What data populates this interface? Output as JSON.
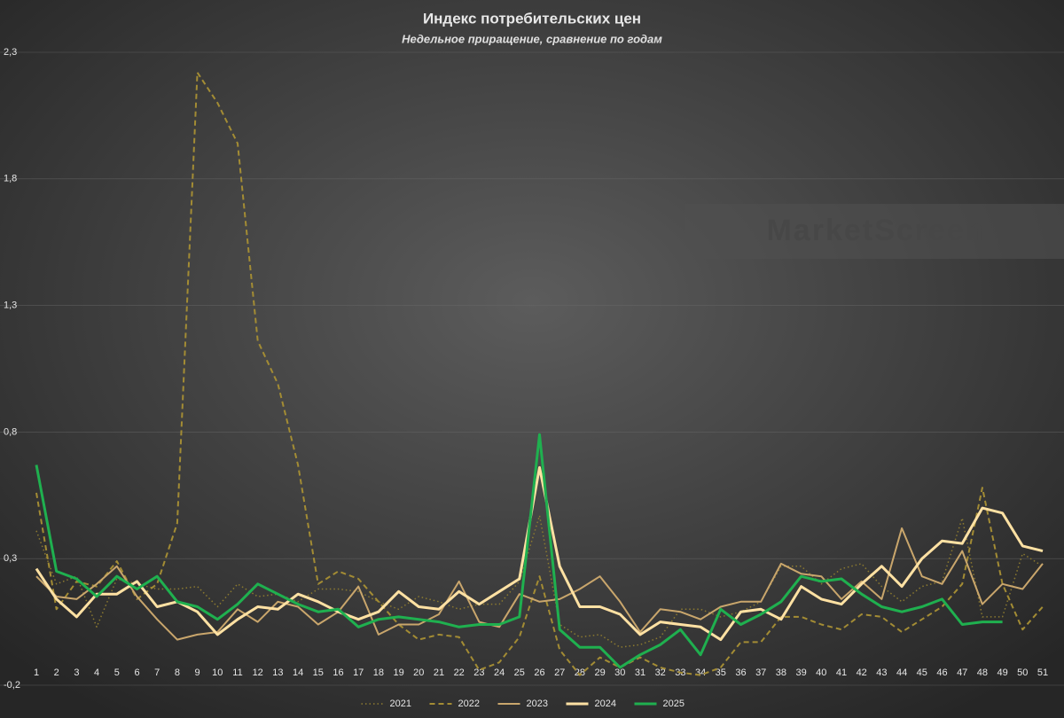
{
  "chart_data": {
    "type": "line",
    "title": "Индекс потребительских цен",
    "subtitle": "Недельное приращение, сравнение по годам",
    "watermark": "MarketScreen",
    "categories": [
      "1",
      "2",
      "3",
      "4",
      "5",
      "6",
      "7",
      "8",
      "9",
      "10",
      "11",
      "12",
      "13",
      "14",
      "15",
      "16",
      "17",
      "18",
      "19",
      "20",
      "21",
      "22",
      "23",
      "24",
      "25",
      "26",
      "27",
      "28",
      "29",
      "30",
      "31",
      "32",
      "33",
      "34",
      "35",
      "36",
      "37",
      "38",
      "39",
      "40",
      "41",
      "42",
      "43",
      "44",
      "45",
      "46",
      "47",
      "48",
      "49",
      "50",
      "51"
    ],
    "ylim": [
      -0.2,
      2.3
    ],
    "yticks": [
      {
        "value": -0.2,
        "label": "-0,2"
      },
      {
        "value": 0.3,
        "label": "0,3"
      },
      {
        "value": 0.8,
        "label": "0,8"
      },
      {
        "value": 1.3,
        "label": "1,3"
      },
      {
        "value": 1.8,
        "label": "1,8"
      },
      {
        "value": 2.3,
        "label": "2,3"
      }
    ],
    "grid": true,
    "legend": "bottom",
    "series": [
      {
        "name": "2021",
        "color": "#8c7a30",
        "style": "dotted",
        "width": 1.5,
        "values": [
          0.41,
          0.2,
          0.23,
          0.03,
          0.22,
          0.2,
          0.18,
          0.18,
          0.19,
          0.11,
          0.2,
          0.15,
          0.16,
          0.13,
          0.18,
          0.18,
          0.17,
          0.13,
          0.1,
          0.15,
          0.13,
          0.1,
          0.12,
          0.12,
          0.21,
          0.47,
          0.04,
          -0.01,
          0,
          -0.05,
          -0.04,
          -0.01,
          0.1,
          0.1,
          0.07,
          0.09,
          0.13,
          0.27,
          0.27,
          0.2,
          0.26,
          0.28,
          0.19,
          0.13,
          0.19,
          0.21,
          0.46,
          0.07,
          0.07,
          0.32,
          0.27
        ]
      },
      {
        "name": "2022",
        "color": "#a38c34",
        "style": "dashed",
        "width": 2,
        "values": [
          0.56,
          0.1,
          0.21,
          0.19,
          0.29,
          0.14,
          0.2,
          0.44,
          2.22,
          2.1,
          1.94,
          1.16,
          0.99,
          0.67,
          0.2,
          0.25,
          0.22,
          0.13,
          0.04,
          -0.02,
          0,
          -0.01,
          -0.14,
          -0.11,
          -0.01,
          0.23,
          -0.06,
          -0.16,
          -0.09,
          -0.13,
          -0.09,
          -0.13,
          -0.15,
          -0.16,
          -0.13,
          -0.03,
          -0.03,
          0.07,
          0.07,
          0.04,
          0.02,
          0.08,
          0.07,
          0.01,
          0.06,
          0.11,
          0.2,
          0.58,
          0.2,
          0.02,
          0.11
        ]
      },
      {
        "name": "2023",
        "color": "#c9a66c",
        "style": "solid",
        "width": 2,
        "values": [
          0.23,
          0.15,
          0.14,
          0.2,
          0.27,
          0.15,
          0.06,
          -0.02,
          0,
          0.01,
          0.1,
          0.05,
          0.13,
          0.11,
          0.04,
          0.09,
          0.19,
          0,
          0.04,
          0.04,
          0.08,
          0.21,
          0.05,
          0.03,
          0.16,
          0.13,
          0.14,
          0.18,
          0.23,
          0.13,
          0.01,
          0.1,
          0.09,
          0.06,
          0.11,
          0.13,
          0.13,
          0.28,
          0.24,
          0.23,
          0.14,
          0.21,
          0.14,
          0.42,
          0.23,
          0.2,
          0.33,
          0.12,
          0.2,
          0.18,
          0.28
        ]
      },
      {
        "name": "2024",
        "color": "#ffe1a3",
        "style": "solid",
        "width": 3,
        "values": [
          0.26,
          0.14,
          0.07,
          0.16,
          0.16,
          0.21,
          0.11,
          0.13,
          0.09,
          0,
          0.06,
          0.11,
          0.1,
          0.16,
          0.13,
          0.09,
          0.06,
          0.09,
          0.17,
          0.11,
          0.1,
          0.17,
          0.12,
          0.17,
          0.22,
          0.66,
          0.27,
          0.11,
          0.11,
          0.08,
          0,
          0.05,
          0.04,
          0.03,
          -0.02,
          0.09,
          0.1,
          0.06,
          0.19,
          0.14,
          0.12,
          0.2,
          0.27,
          0.19,
          0.3,
          0.37,
          0.36,
          0.5,
          0.48,
          0.35,
          0.33
        ]
      },
      {
        "name": "2025",
        "color": "#1fb04f",
        "style": "solid",
        "width": 3,
        "values": [
          0.67,
          0.25,
          0.22,
          0.15,
          0.23,
          0.18,
          0.23,
          0.13,
          0.11,
          0.06,
          0.12,
          0.2,
          0.16,
          0.12,
          0.09,
          0.1,
          0.03,
          0.06,
          0.07,
          0.06,
          0.05,
          0.03,
          0.04,
          0.04,
          0.07,
          0.79,
          0.02,
          -0.05,
          -0.05,
          -0.13,
          -0.08,
          -0.04,
          0.02,
          -0.08,
          0.1,
          0.04,
          0.08,
          0.13,
          0.23,
          0.21,
          0.22,
          0.16,
          0.11,
          0.09,
          0.11,
          0.14,
          0.04,
          0.05,
          0.05,
          null,
          null
        ]
      }
    ]
  }
}
